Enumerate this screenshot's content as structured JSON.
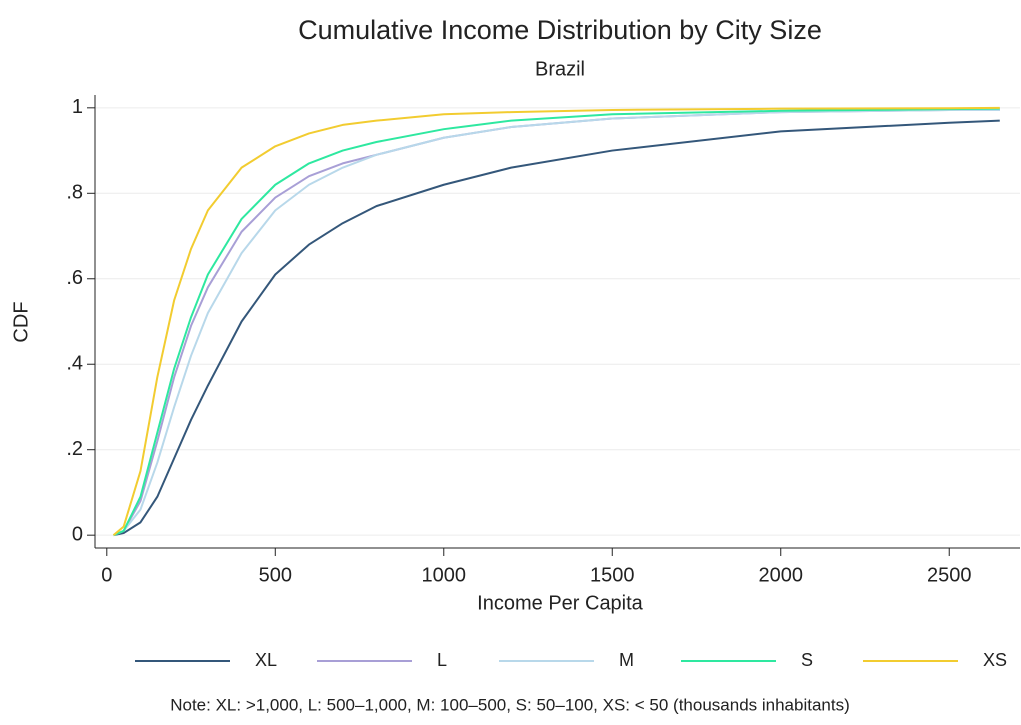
{
  "chart_data": {
    "type": "line",
    "title": "Cumulative Income Distribution by City Size",
    "subtitle": "Brazil",
    "x_label": "Income Per Capita",
    "y_label": "CDF",
    "note": "Note: XL: >1,000, L: 500–1,000, M: 100–500, S: 50–100, XS: < 50 (thousands inhabitants)",
    "x": [
      20,
      50,
      100,
      150,
      200,
      250,
      300,
      400,
      500,
      600,
      700,
      800,
      1000,
      1200,
      1500,
      2000,
      2500,
      2650
    ],
    "series": [
      {
        "name": "XL",
        "color": "#34577a",
        "values": [
          0,
          0.005,
          0.03,
          0.09,
          0.18,
          0.27,
          0.35,
          0.5,
          0.61,
          0.68,
          0.73,
          0.77,
          0.82,
          0.86,
          0.9,
          0.945,
          0.965,
          0.97
        ]
      },
      {
        "name": "L",
        "color": "#a89fd6",
        "values": [
          0,
          0.01,
          0.08,
          0.22,
          0.37,
          0.49,
          0.58,
          0.71,
          0.79,
          0.84,
          0.87,
          0.89,
          0.93,
          0.955,
          0.975,
          0.99,
          0.995,
          0.995
        ]
      },
      {
        "name": "M",
        "color": "#b8d8ea",
        "values": [
          0,
          0.01,
          0.06,
          0.17,
          0.3,
          0.42,
          0.52,
          0.66,
          0.76,
          0.82,
          0.86,
          0.89,
          0.93,
          0.955,
          0.975,
          0.99,
          0.995,
          0.995
        ]
      },
      {
        "name": "S",
        "color": "#2ee8a0",
        "values": [
          0,
          0.01,
          0.09,
          0.24,
          0.39,
          0.51,
          0.61,
          0.74,
          0.82,
          0.87,
          0.9,
          0.92,
          0.95,
          0.97,
          0.985,
          0.993,
          0.997,
          0.998
        ]
      },
      {
        "name": "XS",
        "color": "#f2cc30",
        "values": [
          0,
          0.02,
          0.15,
          0.37,
          0.55,
          0.67,
          0.76,
          0.86,
          0.91,
          0.94,
          0.96,
          0.97,
          0.985,
          0.99,
          0.995,
          0.998,
          0.999,
          1.0
        ]
      }
    ],
    "xlim": [
      -35,
      2710
    ],
    "xticks": [
      0,
      500,
      1000,
      1500,
      2000,
      2500
    ],
    "ylim": [
      -0.03,
      1.03
    ],
    "yticks": [
      0,
      {
        "value": 0.2,
        "label": ".2"
      },
      {
        "value": 0.4,
        "label": ".4"
      },
      {
        "value": 0.6,
        "label": ".6"
      },
      {
        "value": 0.8,
        "label": ".8"
      },
      1
    ],
    "grid": true
  }
}
